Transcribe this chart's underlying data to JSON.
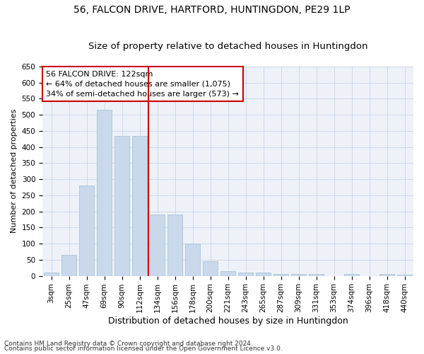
{
  "title": "56, FALCON DRIVE, HARTFORD, HUNTINGDON, PE29 1LP",
  "subtitle": "Size of property relative to detached houses in Huntingdon",
  "xlabel": "Distribution of detached houses by size in Huntingdon",
  "ylabel": "Number of detached properties",
  "categories": [
    "3sqm",
    "25sqm",
    "47sqm",
    "69sqm",
    "90sqm",
    "112sqm",
    "134sqm",
    "156sqm",
    "178sqm",
    "200sqm",
    "221sqm",
    "243sqm",
    "265sqm",
    "287sqm",
    "309sqm",
    "331sqm",
    "353sqm",
    "374sqm",
    "396sqm",
    "418sqm",
    "440sqm"
  ],
  "values": [
    10,
    65,
    280,
    515,
    435,
    435,
    190,
    190,
    100,
    45,
    15,
    10,
    10,
    5,
    5,
    5,
    0,
    5,
    0,
    5,
    3
  ],
  "bar_color": "#c9d9eb",
  "bar_edge_color": "#a8c4d8",
  "vline_index": 5.5,
  "vline_color": "#cc0000",
  "annotation_text": "56 FALCON DRIVE: 122sqm\n← 64% of detached houses are smaller (1,075)\n34% of semi-detached houses are larger (573) →",
  "annotation_box_color": "white",
  "annotation_box_edge": "#cc0000",
  "ylim": [
    0,
    650
  ],
  "yticks": [
    0,
    50,
    100,
    150,
    200,
    250,
    300,
    350,
    400,
    450,
    500,
    550,
    600,
    650
  ],
  "footnote1": "Contains HM Land Registry data © Crown copyright and database right 2024.",
  "footnote2": "Contains public sector information licensed under the Open Government Licence v3.0.",
  "background_color": "#eef2f8",
  "grid_color": "#c8d4e8",
  "title_fontsize": 10,
  "subtitle_fontsize": 9.5,
  "xlabel_fontsize": 9,
  "ylabel_fontsize": 8,
  "tick_fontsize": 7.5,
  "annotation_fontsize": 8
}
